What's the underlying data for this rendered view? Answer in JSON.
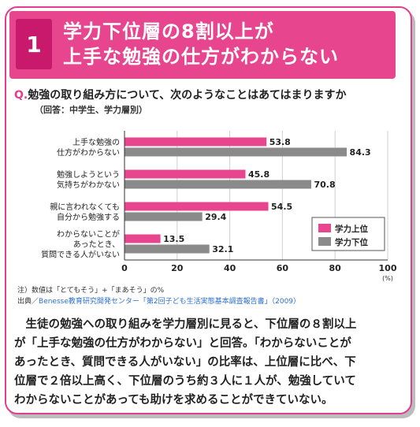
{
  "header": {
    "number": "1",
    "title_line1": "学力下位層の8割以上が",
    "title_line2": "上手な勉強の仕方がわからない"
  },
  "question": {
    "prefix": "Q.",
    "text": "勉強の取り組み方について、次のようなことはあてはまりますか",
    "sub": "（回答：中学生、学力層別）"
  },
  "chart_data": {
    "type": "bar",
    "orientation": "horizontal",
    "categories": [
      [
        "上手な勉強の",
        "仕方がわからない"
      ],
      [
        "勉強しようという",
        "気持ちがわかない"
      ],
      [
        "親に言われなくても",
        "自分から勉強する"
      ],
      [
        "わからないことが",
        "あったとき、",
        "質問できる人がいない"
      ]
    ],
    "series": [
      {
        "name": "学力上位",
        "color": "#e8458f",
        "values": [
          53.8,
          45.8,
          54.5,
          13.5
        ]
      },
      {
        "name": "学力下位",
        "color": "#8a8a8a",
        "values": [
          84.3,
          70.8,
          29.4,
          32.1
        ]
      }
    ],
    "xlim": [
      0,
      100
    ],
    "xticks": [
      "0",
      "20",
      "40",
      "60",
      "80",
      "100"
    ],
    "xunit": "(%)",
    "legend_position": "bottom-right",
    "grid": true
  },
  "notes": {
    "note1": "注）数値は「とてもそう」+「まあそう」の%",
    "source_prefix": "出典／",
    "source_link": "Benesse教育研究開発センター「第2回子ども生活実態基本調査報告書」（2009）"
  },
  "body": {
    "lines": [
      "　生徒の勉強への取り組みを学力層別に見ると、下位層の８割以上",
      "が「上手な勉強の仕方がわからない」と回答。「わからないことが",
      "あったとき、質問できる人がいない」の比率は、上位層に比べ、下",
      "位層で２倍以上高く、下位層のうち約３人に１人が、勉強していて",
      "わからないことがあっても助けを求めることができていない。"
    ]
  }
}
